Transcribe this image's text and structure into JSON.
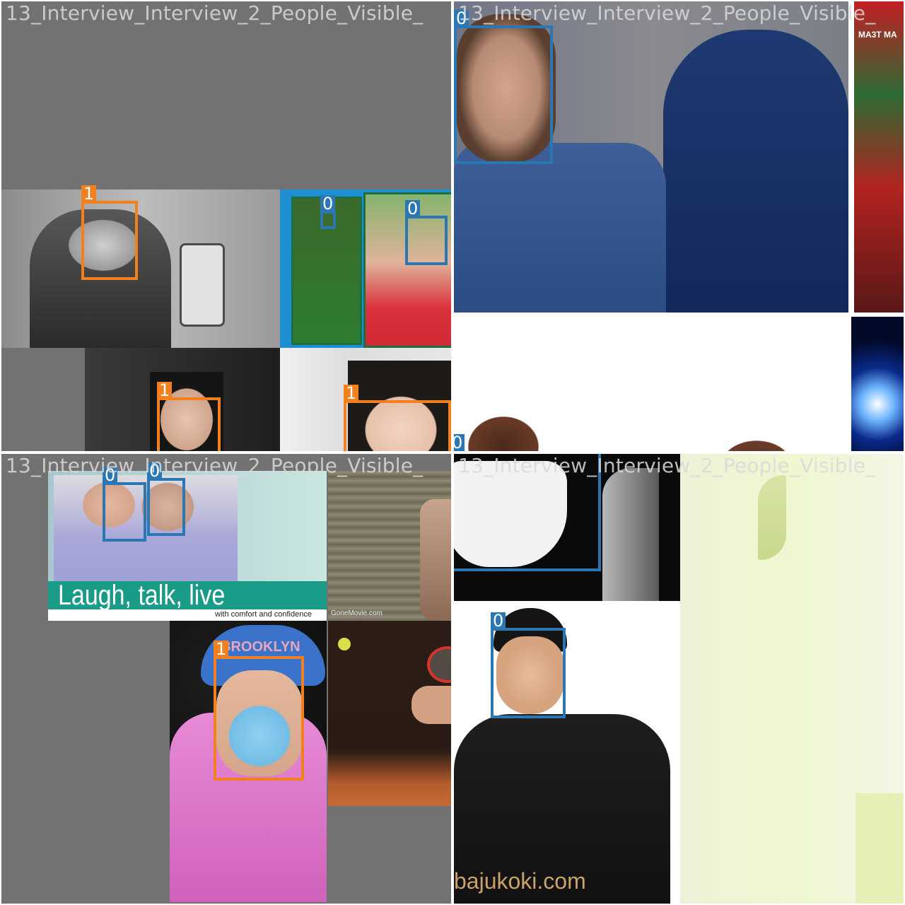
{
  "quadrant_captions": [
    "13_Interview_Interview_2_People_Visible_",
    "13_Interview_Interview_2_People_Visible_",
    "13_Interview_Interview_2_People_Visible_",
    "13_Interview_Interview_2_People_Visible_"
  ],
  "class_labels": {
    "c0": "0",
    "c1": "1"
  },
  "class_colors": {
    "c0": "#2b77b3",
    "c1": "#f2801f"
  },
  "photo_text": {
    "ad_headline": "Laugh, talk, live",
    "ad_tagline": "with comfort and confidence",
    "ad_watermark": "GoneMovie.com",
    "chef_watermark": "bajukoki.com",
    "cap_lettering": "BROOKLYN",
    "poster_title": "MA3T MA"
  }
}
